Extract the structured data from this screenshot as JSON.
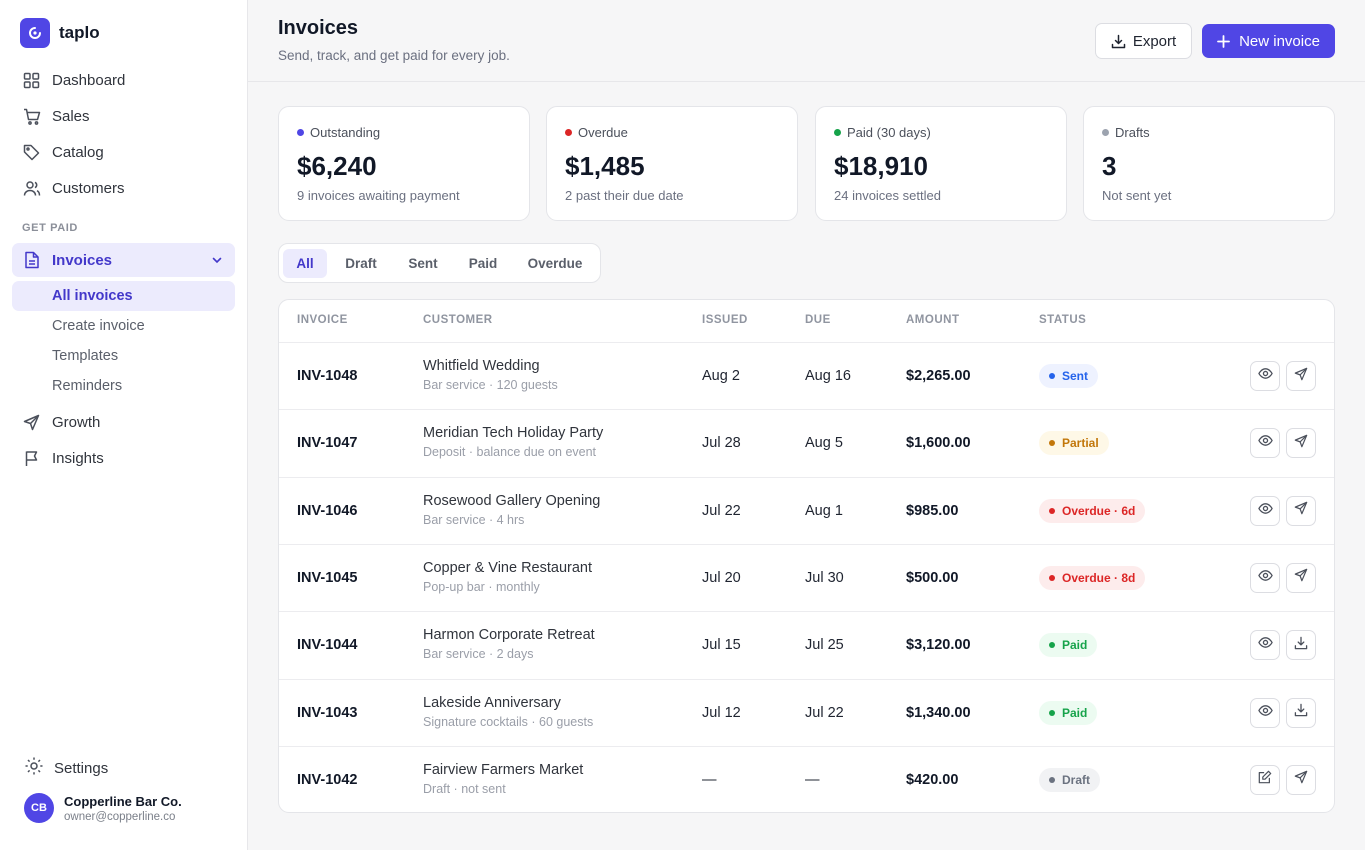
{
  "app": {
    "name": "taplo"
  },
  "sidebar": {
    "nav": [
      {
        "label": "Dashboard",
        "icon": "grid-icon"
      },
      {
        "label": "Sales",
        "icon": "cart-icon"
      },
      {
        "label": "Catalog",
        "icon": "tag-icon"
      },
      {
        "label": "Customers",
        "icon": "users-icon"
      }
    ],
    "section_label": "GET PAID",
    "invoices": {
      "label": "Invoices",
      "icon": "file-icon",
      "sub": [
        "All invoices",
        "Create invoice",
        "Templates",
        "Reminders"
      ]
    },
    "nav2": [
      {
        "label": "Growth",
        "icon": "send-icon"
      },
      {
        "label": "Insights",
        "icon": "flag-icon"
      }
    ],
    "settings_label": "Settings",
    "user": {
      "initials": "CB",
      "name": "Copperline Bar Co.",
      "email": "owner@copperline.co"
    }
  },
  "header": {
    "title": "Invoices",
    "subtitle": "Send, track, and get paid for every job.",
    "export_label": "Export",
    "new_label": "New invoice"
  },
  "stats": [
    {
      "label": "Outstanding",
      "value": "$6,240",
      "note": "9 invoices awaiting payment",
      "color": "#4f46e5"
    },
    {
      "label": "Overdue",
      "value": "$1,485",
      "note": "2 past their due date",
      "color": "#dc2626"
    },
    {
      "label": "Paid (30 days)",
      "value": "$18,910",
      "note": "24 invoices settled",
      "color": "#16a34a"
    },
    {
      "label": "Drafts",
      "value": "3",
      "note": "Not sent yet",
      "color": "#9ca3af"
    }
  ],
  "tabs": [
    "All",
    "Draft",
    "Sent",
    "Paid",
    "Overdue"
  ],
  "table": {
    "headers": [
      "INVOICE",
      "CUSTOMER",
      "ISSUED",
      "DUE",
      "AMOUNT",
      "STATUS"
    ],
    "rows": [
      {
        "id": "INV-1048",
        "customer": "Whitfield Wedding",
        "detail": "Bar service · 120 guests",
        "issued": "Aug 2",
        "due": "Aug 16",
        "amount": "$2,265.00",
        "status": "Sent",
        "kind": "sent",
        "actions": [
          "eye-icon",
          "send-icon"
        ]
      },
      {
        "id": "INV-1047",
        "customer": "Meridian Tech Holiday Party",
        "detail": "Deposit · balance due on event",
        "issued": "Jul 28",
        "due": "Aug 5",
        "amount": "$1,600.00",
        "status": "Partial",
        "kind": "partial",
        "actions": [
          "eye-icon",
          "send-icon"
        ]
      },
      {
        "id": "INV-1046",
        "customer": "Rosewood Gallery Opening",
        "detail": "Bar service · 4 hrs",
        "issued": "Jul 22",
        "due": "Aug 1",
        "amount": "$985.00",
        "status": "Overdue · 6d",
        "kind": "overdue",
        "actions": [
          "eye-icon",
          "send-icon"
        ]
      },
      {
        "id": "INV-1045",
        "customer": "Copper & Vine Restaurant",
        "detail": "Pop-up bar · monthly",
        "issued": "Jul 20",
        "due": "Jul 30",
        "amount": "$500.00",
        "status": "Overdue · 8d",
        "kind": "overdue",
        "actions": [
          "eye-icon",
          "send-icon"
        ]
      },
      {
        "id": "INV-1044",
        "customer": "Harmon Corporate Retreat",
        "detail": "Bar service · 2 days",
        "issued": "Jul 15",
        "due": "Jul 25",
        "amount": "$3,120.00",
        "status": "Paid",
        "kind": "paid",
        "actions": [
          "eye-icon",
          "download-icon"
        ]
      },
      {
        "id": "INV-1043",
        "customer": "Lakeside Anniversary",
        "detail": "Signature cocktails · 60 guests",
        "issued": "Jul 12",
        "due": "Jul 22",
        "amount": "$1,340.00",
        "status": "Paid",
        "kind": "paid",
        "actions": [
          "eye-icon",
          "download-icon"
        ]
      },
      {
        "id": "INV-1042",
        "customer": "Fairview Farmers Market",
        "detail": "Draft · not sent",
        "issued": "—",
        "due": "—",
        "amount": "$420.00",
        "status": "Draft",
        "kind": "draft",
        "actions": [
          "edit-icon",
          "send-icon"
        ]
      }
    ]
  },
  "colors": {
    "accent": "#5046e5",
    "sent": {
      "bg": "#eef2ff",
      "fg": "#2563eb"
    },
    "partial": {
      "bg": "#fef8e7",
      "fg": "#c2770a"
    },
    "overdue": {
      "bg": "#fdecec",
      "fg": "#dc2626"
    },
    "paid": {
      "bg": "#ecfbf1",
      "fg": "#16a34a"
    },
    "draft": {
      "bg": "#f1f2f4",
      "fg": "#6b7280"
    }
  }
}
